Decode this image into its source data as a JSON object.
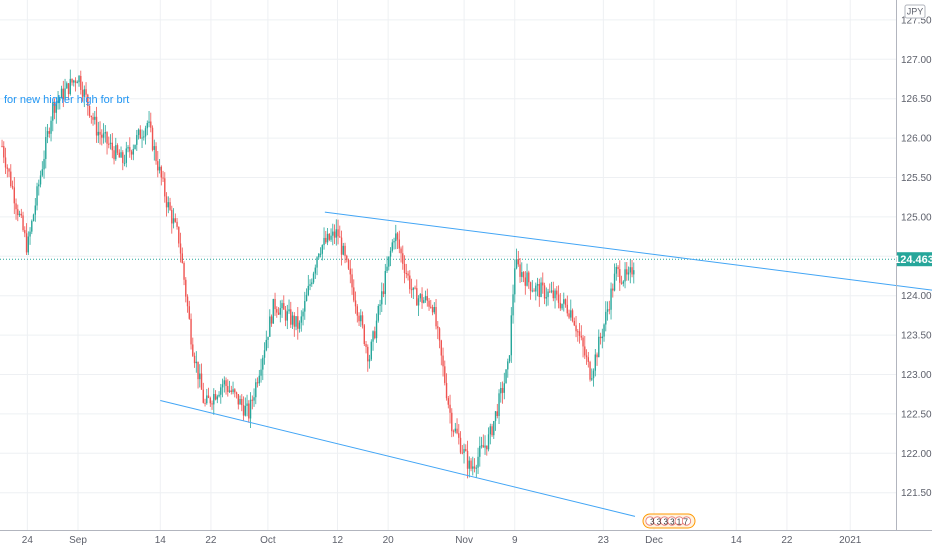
{
  "chart_data": {
    "type": "candlestick",
    "title": "",
    "currency": "JPY",
    "current_price": "124.463",
    "ylim": [
      121.15,
      127.65
    ],
    "y_ticks": [
      "121.500",
      "122.000",
      "122.500",
      "123.000",
      "123.500",
      "124.000",
      "124.500",
      "125.000",
      "125.500",
      "126.000",
      "126.500",
      "127.000",
      "127.500"
    ],
    "x_ticks": [
      "24",
      "Sep",
      "14",
      "22",
      "Oct",
      "12",
      "20",
      "Nov",
      "9",
      "23",
      "Dec",
      "14",
      "22",
      "2021"
    ],
    "annotation": "for new higher high for brt",
    "event_badge": "3 3 3 3 1 7",
    "grid": true,
    "trendlines": [
      {
        "name": "upper trendline",
        "from": {
          "date": "2020-10-10",
          "price": 125.06
        },
        "to": {
          "date": "2021-01-15",
          "price": 124.06
        }
      },
      {
        "name": "lower trendline",
        "from": {
          "date": "2020-09-14",
          "price": 122.67
        },
        "to": {
          "date": "2020-11-28",
          "price": 121.2
        }
      }
    ],
    "path": [
      [
        "2020-08-20",
        125.9
      ],
      [
        "2020-08-24",
        124.6
      ],
      [
        "2020-08-28",
        126.4
      ],
      [
        "2020-09-01",
        126.8
      ],
      [
        "2020-09-04",
        126.1
      ],
      [
        "2020-09-08",
        125.7
      ],
      [
        "2020-09-12",
        126.2
      ],
      [
        "2020-09-15",
        125.2
      ],
      [
        "2020-09-17",
        124.7
      ],
      [
        "2020-09-19",
        123.4
      ],
      [
        "2020-09-21",
        122.6
      ],
      [
        "2020-09-24",
        122.9
      ],
      [
        "2020-09-28",
        122.5
      ],
      [
        "2020-10-02",
        123.9
      ],
      [
        "2020-10-06",
        123.6
      ],
      [
        "2020-10-09",
        124.6
      ],
      [
        "2020-10-12",
        124.8
      ],
      [
        "2020-10-15",
        123.9
      ],
      [
        "2020-10-17",
        123.2
      ],
      [
        "2020-10-21",
        124.8
      ],
      [
        "2020-10-24",
        124.0
      ],
      [
        "2020-10-27",
        123.9
      ],
      [
        "2020-10-30",
        122.4
      ],
      [
        "2020-11-02",
        121.8
      ],
      [
        "2020-11-05",
        122.2
      ],
      [
        "2020-11-08",
        123.1
      ],
      [
        "2020-11-09",
        124.4
      ],
      [
        "2020-11-12",
        124.1
      ],
      [
        "2020-11-15",
        124.0
      ],
      [
        "2020-11-18",
        123.8
      ],
      [
        "2020-11-21",
        123.0
      ],
      [
        "2020-11-23",
        123.6
      ],
      [
        "2020-11-25",
        124.3
      ],
      [
        "2020-11-27",
        124.2
      ],
      [
        "2020-11-28",
        124.46
      ]
    ]
  }
}
